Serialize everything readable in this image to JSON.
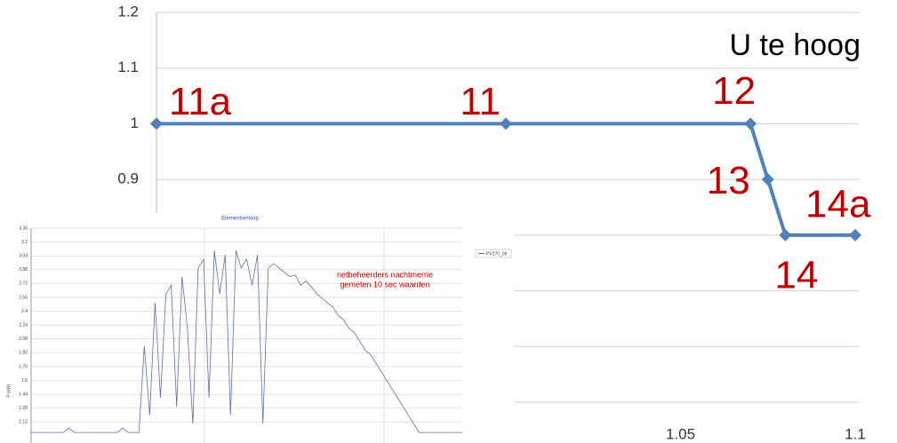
{
  "chart_data": [
    {
      "type": "line",
      "annotation": "U te hoog",
      "x": [
        0.9,
        1.0,
        1.07,
        1.075,
        1.08,
        1.1
      ],
      "series": [
        {
          "color": "#4f81bd",
          "values": [
            1,
            1,
            1,
            0.9,
            0.8,
            0.8
          ]
        }
      ],
      "point_labels": [
        "11a",
        "11",
        "12",
        "13",
        "14",
        "14a"
      ],
      "xlim": [
        0.9,
        1.1
      ],
      "xticks": [
        1.05,
        1.1
      ],
      "ylim": [
        0.5,
        1.2
      ],
      "yticks": [
        0.5,
        0.6,
        0.7,
        0.8,
        0.9,
        1,
        1.1,
        1.2
      ],
      "grid": true
    },
    {
      "type": "line",
      "title": "Elementverloop",
      "annotation": [
        "netbeheerders nachtmerrie",
        "gemeten 10 sec waarden"
      ],
      "y_label": "P (kW)",
      "series": [
        {
          "name": "PV270_06",
          "color": "#5b6fa8",
          "values": [
            1.0,
            1.0,
            1.0,
            1.0,
            1.0,
            1.0,
            1.0,
            1.05,
            1.0,
            1.0,
            1.0,
            1.0,
            1.0,
            1.0,
            1.0,
            1.0,
            1.0,
            1.05,
            1.0,
            1.0,
            1.0,
            2.0,
            1.2,
            2.5,
            1.4,
            2.6,
            2.7,
            1.3,
            2.8,
            2.2,
            1.1,
            2.9,
            3.0,
            1.4,
            3.1,
            2.6,
            3.05,
            1.2,
            3.1,
            2.9,
            3.0,
            2.7,
            3.05,
            1.1,
            2.9,
            2.95,
            2.9,
            2.85,
            2.8,
            2.82,
            2.7,
            2.75,
            2.68,
            2.6,
            2.55,
            2.5,
            2.45,
            2.35,
            2.3,
            2.2,
            2.15,
            2.05,
            1.95,
            1.9,
            1.8,
            1.7,
            1.6,
            1.5,
            1.4,
            1.3,
            1.2,
            1.1,
            1.0,
            1.0,
            1.0,
            1.0,
            1.0,
            1.0,
            1.0,
            1.0,
            1.0
          ]
        }
      ],
      "ylim": [
        0.96,
        3.36
      ],
      "yticks": [
        3.36,
        3.2,
        3.04,
        2.88,
        2.72,
        2.56,
        2.4,
        2.24,
        2.08,
        1.92,
        1.76,
        1.6,
        1.44,
        1.28,
        1.12
      ],
      "grid": true
    }
  ]
}
